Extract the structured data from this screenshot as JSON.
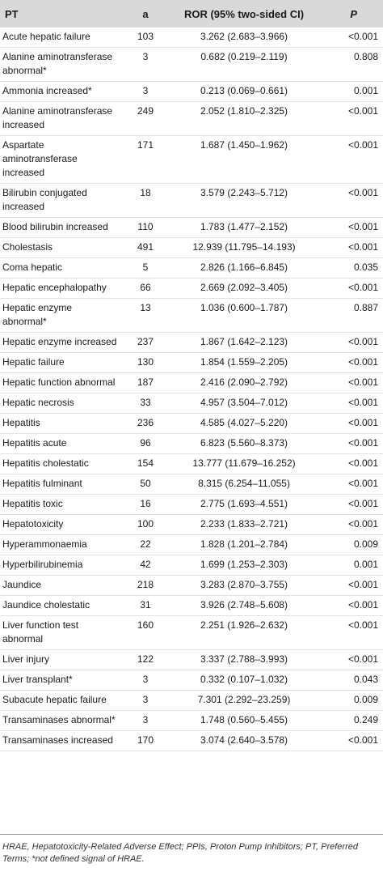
{
  "table": {
    "headers": [
      "PT",
      "a",
      "ROR (95% two-sided CI)",
      "P"
    ],
    "rows": [
      [
        "Acute hepatic failure",
        "103",
        "3.262 (2.683–3.966)",
        "<0.001"
      ],
      [
        "Alanine aminotransferase abnormal*",
        "3",
        "0.682 (0.219–2.119)",
        "0.808"
      ],
      [
        "Ammonia increased*",
        "3",
        "0.213 (0.069–0.661)",
        "0.001"
      ],
      [
        "Alanine aminotransferase increased",
        "249",
        "2.052 (1.810–2.325)",
        "<0.001"
      ],
      [
        "Aspartate aminotransferase increased",
        "171",
        "1.687 (1.450–1.962)",
        "<0.001"
      ],
      [
        "Bilirubin conjugated increased",
        "18",
        "3.579 (2.243–5.712)",
        "<0.001"
      ],
      [
        "Blood bilirubin increased",
        "110",
        "1.783 (1.477–2.152)",
        "<0.001"
      ],
      [
        "Cholestasis",
        "491",
        "12.939 (11.795–14.193)",
        "<0.001"
      ],
      [
        "Coma hepatic",
        "5",
        "2.826 (1.166–6.845)",
        "0.035"
      ],
      [
        "Hepatic encephalopathy",
        "66",
        "2.669 (2.092–3.405)",
        "<0.001"
      ],
      [
        "Hepatic enzyme abnormal*",
        "13",
        "1.036 (0.600–1.787)",
        "0.887"
      ],
      [
        "Hepatic enzyme increased",
        "237",
        "1.867 (1.642–2.123)",
        "<0.001"
      ],
      [
        "Hepatic failure",
        "130",
        "1.854 (1.559–2.205)",
        "<0.001"
      ],
      [
        "Hepatic function abnormal",
        "187",
        "2.416 (2.090–2.792)",
        "<0.001"
      ],
      [
        "Hepatic necrosis",
        "33",
        "4.957 (3.504–7.012)",
        "<0.001"
      ],
      [
        "Hepatitis",
        "236",
        "4.585 (4.027–5.220)",
        "<0.001"
      ],
      [
        "Hepatitis acute",
        "96",
        "6.823 (5.560–8.373)",
        "<0.001"
      ],
      [
        "Hepatitis cholestatic",
        "154",
        "13.777 (11.679–16.252)",
        "<0.001"
      ],
      [
        "Hepatitis fulminant",
        "50",
        "8.315 (6.254–11.055)",
        "<0.001"
      ],
      [
        "Hepatitis toxic",
        "16",
        "2.775 (1.693–4.551)",
        "<0.001"
      ],
      [
        "Hepatotoxicity",
        "100",
        "2.233 (1.833–2.721)",
        "<0.001"
      ],
      [
        "Hyperammonaemia",
        "22",
        "1.828 (1.201–2.784)",
        "0.009"
      ],
      [
        "Hyperbilirubinemia",
        "42",
        "1.699 (1.253–2.303)",
        "0.001"
      ],
      [
        "Jaundice",
        "218",
        "3.283 (2.870–3.755)",
        "<0.001"
      ],
      [
        "Jaundice cholestatic",
        "31",
        "3.926 (2.748–5.608)",
        "<0.001"
      ],
      [
        "Liver function test abnormal",
        "160",
        "2.251 (1.926–2.632)",
        "<0.001"
      ],
      [
        "Liver injury",
        "122",
        "3.337 (2.788–3.993)",
        "<0.001"
      ],
      [
        "Liver transplant*",
        "3",
        "0.332 (0.107–1.032)",
        "0.043"
      ],
      [
        "Subacute hepatic failure",
        "3",
        "7.301 (2.292–23.259)",
        "0.009"
      ],
      [
        "Transaminases abnormal*",
        "3",
        "1.748 (0.560–5.455)",
        "0.249"
      ],
      [
        "Transaminases increased",
        "170",
        "3.074 (2.640–3.578)",
        "<0.001"
      ]
    ]
  },
  "footnote": "HRAE, Hepatotoxicity-Related Adverse Effect; PPIs, Proton Pump Inhibitors; PT, Preferred Terms; *not defined signal of HRAE."
}
